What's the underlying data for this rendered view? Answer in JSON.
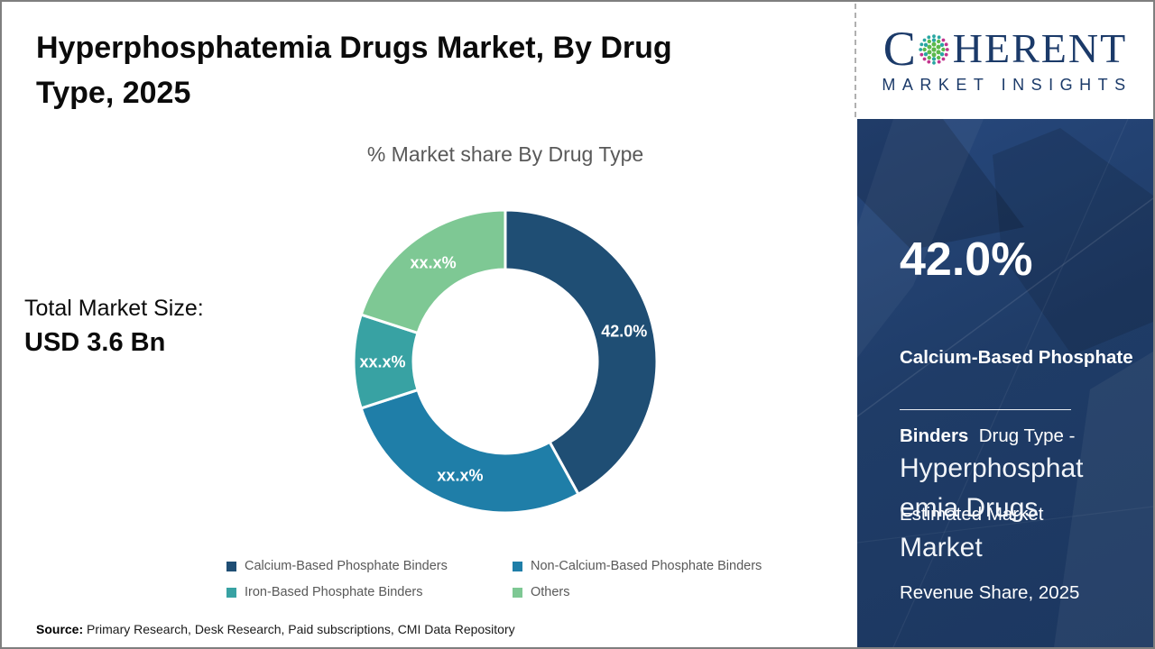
{
  "page": {
    "title_full": "Hyperphosphatemia Drugs Market, By Drug Type, 2025",
    "title_lines": [
      "Hyperphosphatemia Drugs Market, By Drug",
      "Type, 2025"
    ],
    "source": {
      "label": "Source:",
      "text": " Primary Research, Desk Research, Paid subscriptions, CMI Data Repository"
    }
  },
  "logo": {
    "icon": "globe-dots-icon",
    "word_start": "C",
    "word_end": "HERENT",
    "subtitle": "MARKET INSIGHTS",
    "colors": {
      "navy": "#1B3A69",
      "teal": "#2AA7A2",
      "green": "#5CB94B",
      "magenta": "#C2338D"
    }
  },
  "main": {
    "total_market": {
      "label": "Total Market Size:",
      "value": "USD 3.6 Bn"
    }
  },
  "chart_data": {
    "type": "pie",
    "variant": "donut",
    "title": "% Market share By Drug Type",
    "start_angle_deg": 0,
    "inner_radius_ratio": 0.61,
    "legend_position": "bottom",
    "label_color": "#FFFFFF",
    "segments": [
      {
        "label": "Calcium-Based Phosphate Binders",
        "display_value": "42.0%",
        "value_pct_est": 42.0,
        "color": "#1F4E74"
      },
      {
        "label": "Non-Calcium-Based Phosphate Binders",
        "display_value": "xx.x%",
        "value_pct_est": 28.0,
        "color": "#1F7EA8"
      },
      {
        "label": "Iron-Based Phosphate Binders",
        "display_value": "xx.x%",
        "value_pct_est": 10.0,
        "color": "#38A2A3"
      },
      {
        "label": "Others",
        "display_value": "xx.x%",
        "value_pct_est": 20.0,
        "color": "#7EC894"
      }
    ]
  },
  "sidebar": {
    "background_color": "#1F3C67",
    "stat": {
      "value": "42.0%",
      "desc_bold": "Calcium-Based Phosphate Binders",
      "desc_regular": "Drug Type - Estimated Market Revenue Share, 2025",
      "desc_lines": [
        {
          "bold": "Calcium-Based Phosphate",
          "regular": ""
        },
        {
          "bold": "Binders",
          "regular": "  Drug Type -"
        },
        {
          "bold": "",
          "regular": "Estimated Market"
        },
        {
          "bold": "",
          "regular": "Revenue Share, 2025"
        }
      ]
    },
    "panel_title_full": "Hyperphosphatemia Drugs Market",
    "panel_title_lines": [
      "Hyperphosphat",
      "emia Drugs",
      "Market"
    ]
  }
}
